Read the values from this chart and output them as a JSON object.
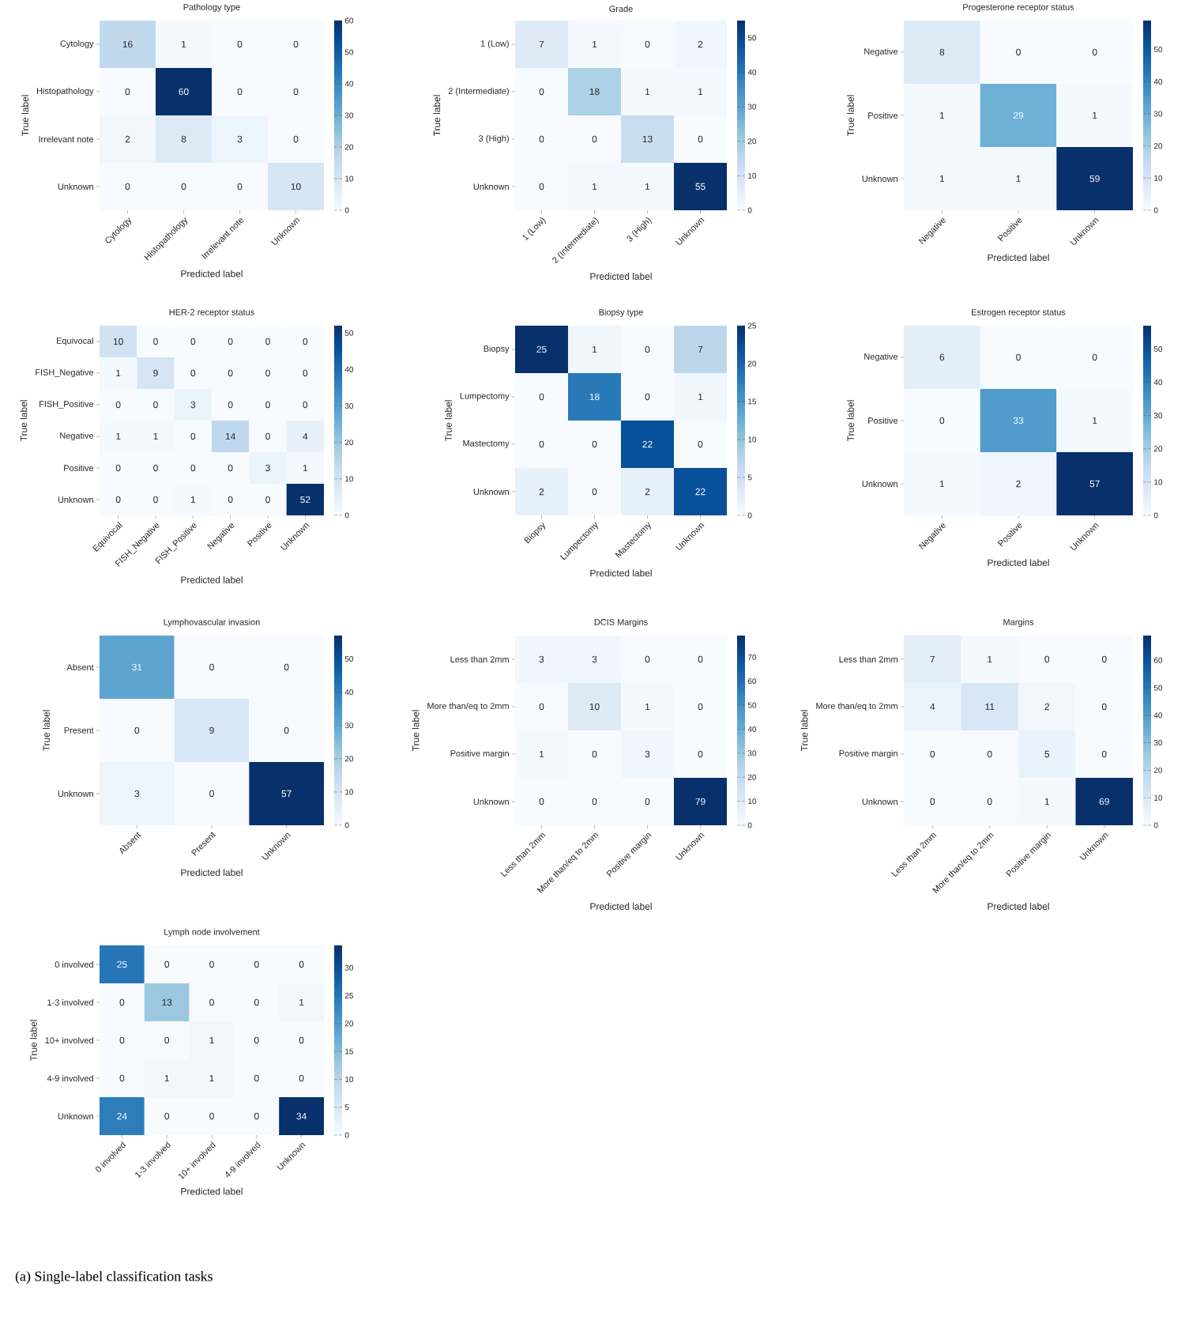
{
  "chart_data": [
    {
      "type": "heatmap",
      "title": "Pathology type",
      "xlabel": "Predicted label",
      "ylabel": "True label",
      "categories": [
        "Cytology",
        "Histopathology",
        "Irrelevant note",
        "Unknown"
      ],
      "y_categories": [
        "Cytology",
        "Histopathology",
        "Irrelevant note",
        "Unknown"
      ],
      "cells": [
        [
          16,
          1,
          0,
          0
        ],
        [
          0,
          60,
          0,
          0
        ],
        [
          2,
          8,
          3,
          0
        ],
        [
          0,
          0,
          0,
          10
        ]
      ],
      "clim": [
        0,
        60
      ],
      "data_labels": true,
      "cticks": [
        0,
        10,
        20,
        30,
        40,
        50,
        60
      ]
    },
    {
      "type": "heatmap",
      "title": "Grade",
      "xlabel": "Predicted label",
      "ylabel": "True label",
      "categories": [
        "1 (Low)",
        "2 (Intermediate)",
        "3 (High)",
        "Unknown"
      ],
      "y_categories": [
        "1 (Low)",
        "2 (Intermediate)",
        "3 (High)",
        "Unknown"
      ],
      "cells": [
        [
          7,
          1,
          0,
          2
        ],
        [
          0,
          18,
          1,
          1
        ],
        [
          0,
          0,
          13,
          0
        ],
        [
          0,
          1,
          1,
          55
        ]
      ],
      "clim": [
        0,
        55
      ],
      "data_labels": true,
      "cticks": [
        0,
        10,
        20,
        30,
        40,
        50
      ]
    },
    {
      "type": "heatmap",
      "title": "Progesterone receptor status",
      "xlabel": "Predicted label",
      "ylabel": "True label",
      "categories": [
        "Negative",
        "Positive",
        "Unknown"
      ],
      "y_categories": [
        "Negative",
        "Positive",
        "Unknown"
      ],
      "cells": [
        [
          8,
          0,
          0
        ],
        [
          1,
          29,
          1
        ],
        [
          1,
          1,
          59
        ]
      ],
      "clim": [
        0,
        59
      ],
      "data_labels": true,
      "cticks": [
        0,
        10,
        20,
        30,
        40,
        50
      ]
    },
    {
      "type": "heatmap",
      "title": "HER-2 receptor status",
      "xlabel": "Predicted label",
      "ylabel": "True label",
      "categories": [
        "Equivocal",
        "FISH_Negative",
        "FISH_Positive",
        "Negative",
        "Positive",
        "Unknown"
      ],
      "y_categories": [
        "Equivocal",
        "FISH_Negative",
        "FISH_Positive",
        "Negative",
        "Positive",
        "Unknown"
      ],
      "cells": [
        [
          10,
          0,
          0,
          0,
          0,
          0
        ],
        [
          1,
          9,
          0,
          0,
          0,
          0
        ],
        [
          0,
          0,
          3,
          0,
          0,
          0
        ],
        [
          1,
          1,
          0,
          14,
          0,
          4
        ],
        [
          0,
          0,
          0,
          0,
          3,
          1
        ],
        [
          0,
          0,
          1,
          0,
          0,
          52
        ]
      ],
      "clim": [
        0,
        52
      ],
      "data_labels": true,
      "cticks": [
        0,
        10,
        20,
        30,
        40,
        50
      ]
    },
    {
      "type": "heatmap",
      "title": "Biopsy type",
      "xlabel": "Predicted label",
      "ylabel": "True label",
      "categories": [
        "Biopsy",
        "Lumpectomy",
        "Mastectomy",
        "Unknown"
      ],
      "y_categories": [
        "Biopsy",
        "Lumpectomy",
        "Mastectomy",
        "Unknown"
      ],
      "cells": [
        [
          25,
          1,
          0,
          7
        ],
        [
          0,
          18,
          0,
          1
        ],
        [
          0,
          0,
          22,
          0
        ],
        [
          2,
          0,
          2,
          22
        ]
      ],
      "clim": [
        0,
        25
      ],
      "data_labels": true,
      "cticks": [
        0,
        5,
        10,
        15,
        20,
        25
      ]
    },
    {
      "type": "heatmap",
      "title": "Estrogen receptor status",
      "xlabel": "Predicted label",
      "ylabel": "True label",
      "categories": [
        "Negative",
        "Positive",
        "Unknown"
      ],
      "y_categories": [
        "Negative",
        "Positive",
        "Unknown"
      ],
      "cells": [
        [
          6,
          0,
          0
        ],
        [
          0,
          33,
          1
        ],
        [
          1,
          2,
          57
        ]
      ],
      "clim": [
        0,
        57
      ],
      "data_labels": true,
      "cticks": [
        0,
        10,
        20,
        30,
        40,
        50
      ]
    },
    {
      "type": "heatmap",
      "title": "Lymphovascular invasion",
      "xlabel": "Predicted label",
      "ylabel": "True label",
      "categories": [
        "Absent",
        "Present",
        "Unknown"
      ],
      "y_categories": [
        "Absent",
        "Present",
        "Unknown"
      ],
      "cells": [
        [
          31,
          0,
          0
        ],
        [
          0,
          9,
          0
        ],
        [
          3,
          0,
          57
        ]
      ],
      "clim": [
        0,
        57
      ],
      "data_labels": true,
      "cticks": [
        0,
        10,
        20,
        30,
        40,
        50
      ]
    },
    {
      "type": "heatmap",
      "title": "DCIS Margins",
      "xlabel": "Predicted label",
      "ylabel": "True label",
      "categories": [
        "Less than 2mm",
        "More than/eq to 2mm",
        "Positive margin",
        "Unknown"
      ],
      "y_categories": [
        "Less than 2mm",
        "More than/eq to 2mm",
        "Positive margin",
        "Unknown"
      ],
      "cells": [
        [
          3,
          3,
          0,
          0
        ],
        [
          0,
          10,
          1,
          0
        ],
        [
          1,
          0,
          3,
          0
        ],
        [
          0,
          0,
          0,
          79
        ]
      ],
      "clim": [
        0,
        79
      ],
      "data_labels": true,
      "cticks": [
        0,
        10,
        20,
        30,
        40,
        50,
        60,
        70
      ]
    },
    {
      "type": "heatmap",
      "title": "Margins",
      "xlabel": "Predicted label",
      "ylabel": "True label",
      "categories": [
        "Less than 2mm",
        "More than/eq to 2mm",
        "Positive margin",
        "Unknown"
      ],
      "y_categories": [
        "Less than 2mm",
        "More than/eq to 2mm",
        "Positive margin",
        "Unknown"
      ],
      "cells": [
        [
          7,
          1,
          0,
          0
        ],
        [
          4,
          11,
          2,
          0
        ],
        [
          0,
          0,
          5,
          0
        ],
        [
          0,
          0,
          1,
          69
        ]
      ],
      "clim": [
        0,
        69
      ],
      "data_labels": true,
      "cticks": [
        0,
        10,
        20,
        30,
        40,
        50,
        60
      ]
    },
    {
      "type": "heatmap",
      "title": "Lymph node involvement",
      "xlabel": "Predicted label",
      "ylabel": "True label",
      "categories": [
        "0 involved",
        "1-3 involved",
        "10+ involved",
        "4-9 involved",
        "Unknown"
      ],
      "y_categories": [
        "0 involved",
        "1-3 involved",
        "10+ involved",
        "4-9 involved",
        "Unknown"
      ],
      "cells": [
        [
          25,
          0,
          0,
          0,
          0
        ],
        [
          0,
          13,
          0,
          0,
          1
        ],
        [
          0,
          0,
          1,
          0,
          0
        ],
        [
          0,
          1,
          1,
          0,
          0
        ],
        [
          24,
          0,
          0,
          0,
          34
        ]
      ],
      "clim": [
        0,
        34
      ],
      "data_labels": true,
      "cticks": [
        0,
        5,
        10,
        15,
        20,
        25,
        30
      ],
      "annotations": [
        "(a)  Single-label classification tasks"
      ]
    }
  ]
}
